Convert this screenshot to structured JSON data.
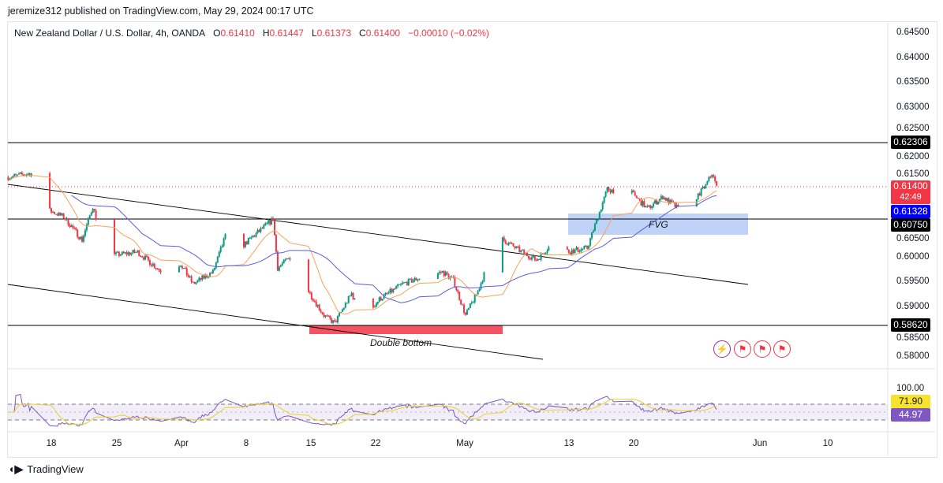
{
  "header": {
    "published": "jeremize312 published on TradingView.com, May 29, 2024 00:17 UTC"
  },
  "legend": {
    "symbol": "New Zealand Dollar / U.S. Dollar, 4h, OANDA",
    "o_label": "O",
    "o": "0.61410",
    "h_label": "H",
    "h": "0.61447",
    "l_label": "L",
    "l": "0.61373",
    "c_label": "C",
    "c": "0.61400",
    "change": "−0.00010 (−0.02%)"
  },
  "price_axis": {
    "ticks": [
      "0.64500",
      "0.64000",
      "0.63500",
      "0.63000",
      "0.62500",
      "0.62000",
      "0.61500",
      "0.60500",
      "0.60000",
      "0.59500",
      "0.59000",
      "0.58500",
      "0.58000"
    ]
  },
  "price_labels": {
    "level_high": "0.62306",
    "last": "0.61400",
    "countdown": "42:49",
    "ma": "0.61328",
    "level_mid": "0.60750",
    "level_low": "0.58620"
  },
  "rsi": {
    "tick": "100.00",
    "rsi_value": "71.90",
    "ma_value": "44.97"
  },
  "time_axis": [
    "18",
    "25",
    "Apr",
    "8",
    "15",
    "22",
    "May",
    "13",
    "20",
    "Jun",
    "10"
  ],
  "annotations": {
    "fvg": "FVG",
    "double_bottom": "Double bottom"
  },
  "colors": {
    "up": "#089981",
    "down": "#f23645",
    "ma_fast": "#f7a35c",
    "ma_slow": "#5b5be6",
    "fvg": "#a9c4f5",
    "zone": "#f23645",
    "rsi": "#7e57c2",
    "rsi_ma": "#f7e32b"
  },
  "brand": "TradingView",
  "chart_data": {
    "type": "candlestick",
    "ylim": [
      0.58,
      0.645
    ],
    "horizontal_levels": [
      0.62306,
      0.6075,
      0.5862
    ],
    "approx_closes": [
      [
        "2024-03-13T08:00Z",
        0.6159
      ],
      [
        "2024-03-15T20:00Z",
        0.6167
      ],
      [
        "2024-03-16T16:00Z",
        0.6101
      ],
      [
        "2024-03-19T08:00Z",
        0.608
      ],
      [
        "2024-03-21T08:00Z",
        0.6033
      ],
      [
        "2024-03-22T12:00Z",
        0.6101
      ],
      [
        "2024-03-24T00:00Z",
        0.6001
      ],
      [
        "2024-03-27T08:00Z",
        0.6009
      ],
      [
        "2024-03-30T00:00Z",
        0.5969
      ],
      [
        "2024-04-01T00:00Z",
        0.5985
      ],
      [
        "2024-04-02T08:00Z",
        0.5945
      ],
      [
        "2024-04-04T12:00Z",
        0.5969
      ],
      [
        "2024-04-05T20:00Z",
        0.604
      ],
      [
        "2024-04-07T00:00Z",
        0.601
      ],
      [
        "2024-04-08T20:00Z",
        0.604
      ],
      [
        "2024-04-11T00:00Z",
        0.6075
      ],
      [
        "2024-04-11T12:00Z",
        0.5977
      ],
      [
        "2024-04-13T00:00Z",
        0.6001
      ],
      [
        "2024-04-14T08:00Z",
        0.5945
      ],
      [
        "2024-04-16T12:00Z",
        0.5882
      ],
      [
        "2024-04-17T16:00Z",
        0.5866
      ],
      [
        "2024-04-19T12:00Z",
        0.5926
      ],
      [
        "2024-04-20T16:00Z",
        0.5874
      ],
      [
        "2024-04-22T12:00Z",
        0.5914
      ],
      [
        "2024-04-25T00:00Z",
        0.5945
      ],
      [
        "2024-04-27T12:00Z",
        0.5961
      ],
      [
        "2024-04-29T08:00Z",
        0.5969
      ],
      [
        "2024-04-30T12:00Z",
        0.5953
      ],
      [
        "2024-05-01T20:00Z",
        0.5882
      ],
      [
        "2024-05-03T04:00Z",
        0.593
      ],
      [
        "2024-05-05T08:00Z",
        0.604
      ],
      [
        "2024-05-07T20:00Z",
        0.601
      ],
      [
        "2024-05-09T12:00Z",
        0.5993
      ],
      [
        "2024-05-11T04:00Z",
        0.6025
      ],
      [
        "2024-05-13T00:00Z",
        0.601
      ],
      [
        "2024-05-15T00:00Z",
        0.6017
      ],
      [
        "2024-05-17T04:00Z",
        0.6135
      ],
      [
        "2024-05-19T20:00Z",
        0.6127
      ],
      [
        "2024-05-21T12:00Z",
        0.6096
      ],
      [
        "2024-05-23T04:00Z",
        0.612
      ],
      [
        "2024-05-24T20:00Z",
        0.6096
      ],
      [
        "2024-05-26T04:00Z",
        0.6104
      ],
      [
        "2024-05-27T20:00Z",
        0.6143
      ],
      [
        "2024-05-28T12:00Z",
        0.6167
      ],
      [
        "2024-05-29T00:00Z",
        0.614
      ]
    ]
  }
}
